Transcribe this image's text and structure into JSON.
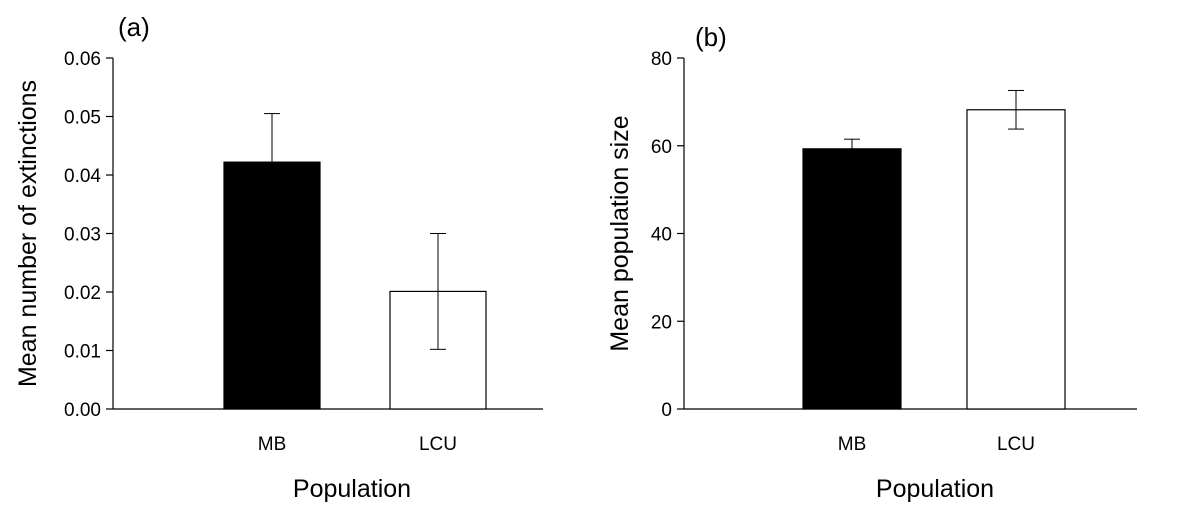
{
  "chart_data": [
    {
      "type": "bar",
      "panel_label": "(a)",
      "categories": [
        "MB",
        "LCU"
      ],
      "values": [
        0.0422,
        0.0201
      ],
      "errors": [
        0.0083,
        0.0099
      ],
      "bar_colors": [
        "#000000",
        "#ffffff"
      ],
      "xlabel": "Population",
      "ylabel": "Mean number of extinctions",
      "ylim": [
        0,
        0.06
      ],
      "yticks": [
        "0.00",
        "0.01",
        "0.02",
        "0.03",
        "0.04",
        "0.05",
        "0.06"
      ],
      "grid": false
    },
    {
      "type": "bar",
      "panel_label": "(b)",
      "categories": [
        "MB",
        "LCU"
      ],
      "values": [
        59.3,
        68.2
      ],
      "errors": [
        2.2,
        4.4
      ],
      "bar_colors": [
        "#000000",
        "#ffffff"
      ],
      "xlabel": "Population",
      "ylabel": "Mean population size",
      "ylim": [
        0,
        80
      ],
      "yticks": [
        "0",
        "20",
        "40",
        "60",
        "80"
      ],
      "grid": false
    }
  ]
}
